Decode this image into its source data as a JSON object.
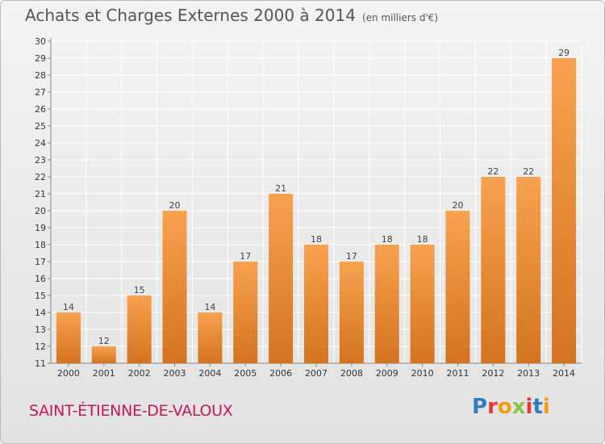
{
  "header": {
    "title": "Achats et Charges Externes 2000 à 2014",
    "subtitle": "(en milliers d'€)"
  },
  "footer": {
    "location": "SAINT-ÉTIENNE-DE-VALOUX",
    "logo_text": "Proxiti",
    "logo_colors": [
      "#2e7fc1",
      "#e53935",
      "#f39c12",
      "#8bc34a",
      "#e53935",
      "#2e7fc1",
      "#f39c12"
    ]
  },
  "chart_data": {
    "type": "bar",
    "title": "Achats et Charges Externes 2000 à 2014",
    "subtitle": "(en milliers d'€)",
    "categories": [
      "2000",
      "2001",
      "2002",
      "2003",
      "2004",
      "2005",
      "2006",
      "2007",
      "2008",
      "2009",
      "2010",
      "2011",
      "2012",
      "2013",
      "2014"
    ],
    "values": [
      14,
      12,
      15,
      20,
      14,
      17,
      21,
      18,
      17,
      18,
      18,
      20,
      22,
      22,
      29
    ],
    "ylim": [
      11,
      30
    ],
    "yticks": [
      11,
      12,
      13,
      14,
      15,
      16,
      17,
      18,
      19,
      20,
      21,
      22,
      23,
      24,
      25,
      26,
      27,
      28,
      29,
      30
    ],
    "data_labels": true,
    "grid": true,
    "bar_color_top": "#f7a24f",
    "bar_color_bottom": "#d4731f",
    "xlabel": "",
    "ylabel": ""
  }
}
